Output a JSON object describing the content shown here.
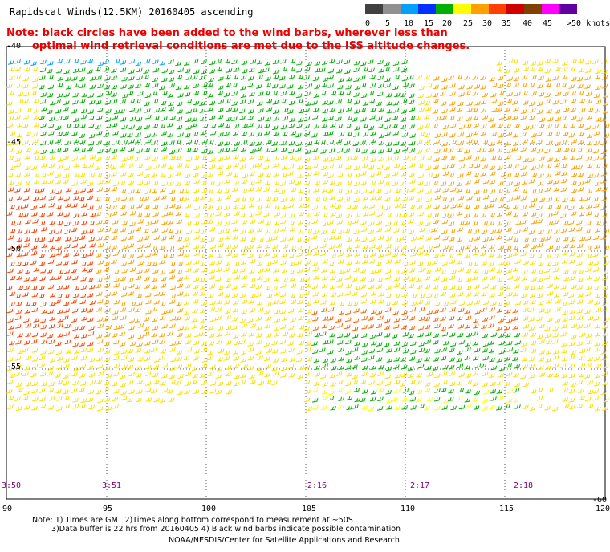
{
  "title": "Rapidscat Winds(12.5KM) 20160405 ascending",
  "note": {
    "line1": "Note: black circles have been added to the wind barbs, wherever less than",
    "line2": "optimal wind retrieval conditions are met due to the ISS altitude changes."
  },
  "scale": {
    "labels": [
      "0",
      "5",
      "10",
      "15",
      "20",
      "25",
      "30",
      "35",
      "40",
      "45",
      ">50 knots"
    ],
    "colors": [
      "#404040",
      "#909090",
      "#00a0ff",
      "#0030ff",
      "#00b000",
      "#ffff00",
      "#ffa000",
      "#ff4000",
      "#d00000",
      "#804000",
      "#ff00ff",
      "#6000a0"
    ]
  },
  "latitudes": [
    "-40",
    "-45",
    "-50",
    "-55",
    "-60"
  ],
  "longitudes": [
    "90",
    "95",
    "100",
    "105",
    "110",
    "115",
    "120"
  ],
  "times": [
    "3:50",
    "3:51",
    "2:16",
    "2:17",
    "2:18"
  ],
  "footnotes": {
    "line1": "Note: 1) Times are GMT 2)Times along bottom correspond to measurement at ~50S",
    "line2": "3)Data buffer is 22 hrs from 20160405 4) Black wind barbs indicate possible contamination",
    "line3": "NOAA/NESDIS/Center for Satellite Applications and Research"
  }
}
